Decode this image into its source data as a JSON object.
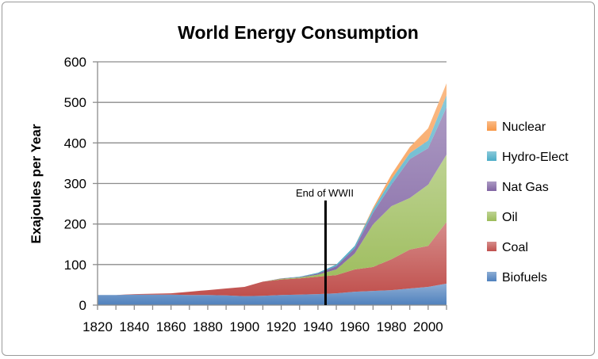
{
  "chart_data": {
    "type": "area",
    "stacked": true,
    "title": "World Energy Consumption",
    "xlabel": "",
    "ylabel": "Exajoules per Year",
    "ylim": [
      0,
      600
    ],
    "yticks": [
      0,
      100,
      200,
      300,
      400,
      500,
      600
    ],
    "xticks": [
      1820,
      1840,
      1860,
      1880,
      1900,
      1920,
      1940,
      1960,
      1980,
      2000
    ],
    "grid": true,
    "legend": "right",
    "x": [
      1820,
      1830,
      1840,
      1850,
      1860,
      1870,
      1880,
      1890,
      1900,
      1910,
      1920,
      1930,
      1940,
      1950,
      1960,
      1970,
      1980,
      1990,
      2000,
      2010
    ],
    "series": [
      {
        "name": "Biofuels",
        "color": "#4f81bd",
        "values": [
          25,
          25,
          26,
          26,
          26,
          25,
          25,
          24,
          22,
          23,
          25,
          26,
          27,
          29,
          33,
          35,
          37,
          41,
          45,
          53
        ]
      },
      {
        "name": "Coal",
        "color": "#c0504d",
        "values": [
          0,
          0,
          1,
          2,
          3,
          8,
          12,
          17,
          23,
          35,
          38,
          40,
          43,
          45,
          55,
          59,
          76,
          96,
          101,
          152
        ]
      },
      {
        "name": "Oil",
        "color": "#9bbb59",
        "values": [
          0,
          0,
          0,
          0,
          0,
          0,
          0,
          0,
          0,
          0,
          2,
          2,
          5,
          14,
          39,
          105,
          131,
          127,
          151,
          166
        ]
      },
      {
        "name": "Nat Gas",
        "color": "#8064a2",
        "values": [
          0,
          0,
          0,
          0,
          0,
          0,
          0,
          0,
          0,
          0,
          1,
          1,
          3,
          8,
          13,
          29,
          53,
          96,
          90,
          117
        ]
      },
      {
        "name": "Hydro-Elect",
        "color": "#4bacc6",
        "values": [
          0,
          0,
          0,
          0,
          0,
          0,
          0,
          0,
          0,
          0,
          0,
          1,
          2,
          4,
          6,
          8,
          13,
          15,
          19,
          30
        ]
      },
      {
        "name": "Nuclear",
        "color": "#f79646",
        "values": [
          0,
          0,
          0,
          0,
          0,
          0,
          0,
          0,
          0,
          0,
          0,
          0,
          0,
          0,
          0,
          4,
          12,
          15,
          30,
          29
        ]
      }
    ],
    "annotations": [
      {
        "text": "End of WWII",
        "x": 1945
      }
    ]
  }
}
